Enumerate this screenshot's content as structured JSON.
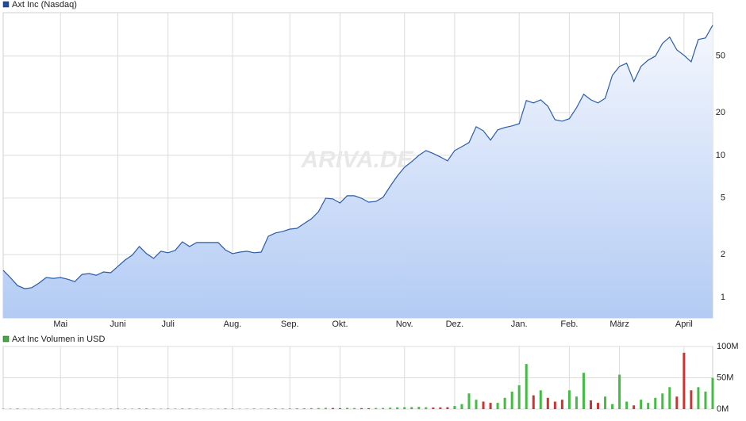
{
  "chart_data": [
    {
      "type": "area",
      "title": "Axt Inc (Nasdaq)",
      "watermark": "ARIVA.DE",
      "color": "#2a5ca8",
      "legend_color": "#1f4e9c",
      "log_scale": true,
      "grid": true,
      "values": [
        1.55,
        1.38,
        1.21,
        1.15,
        1.17,
        1.26,
        1.38,
        1.36,
        1.38,
        1.34,
        1.29,
        1.45,
        1.47,
        1.43,
        1.51,
        1.49,
        1.65,
        1.83,
        1.98,
        2.28,
        2.03,
        1.88,
        2.11,
        2.06,
        2.14,
        2.46,
        2.28,
        2.43,
        2.43,
        2.43,
        2.43,
        2.16,
        2.03,
        2.08,
        2.11,
        2.06,
        2.08,
        2.69,
        2.84,
        2.91,
        3.02,
        3.06,
        3.31,
        3.57,
        4.01,
        4.99,
        4.93,
        4.62,
        5.19,
        5.19,
        4.99,
        4.68,
        4.74,
        5.06,
        6.05,
        7.16,
        8.24,
        9.02,
        10.0,
        10.8,
        10.3,
        9.75,
        9.14,
        10.8,
        11.5,
        12.3,
        15.9,
        14.9,
        12.8,
        15.1,
        15.7,
        16.1,
        16.7,
        24.3,
        23.4,
        24.6,
        22.2,
        17.8,
        17.4,
        18.1,
        21.6,
        26.9,
        24.6,
        23.4,
        25.2,
        36.6,
        42.3,
        44.5,
        33.1,
        42.3,
        46.8,
        49.9,
        61.4,
        68.0,
        55.3,
        50.6,
        45.6,
        65.4,
        67.1,
        82.4
      ],
      "xlim": [
        0,
        99
      ],
      "xticks": [
        {
          "value": 8,
          "label": "Mai"
        },
        {
          "value": 16,
          "label": "Juni"
        },
        {
          "value": 23,
          "label": "Juli"
        },
        {
          "value": 32,
          "label": "Aug."
        },
        {
          "value": 40,
          "label": "Sep."
        },
        {
          "value": 47,
          "label": "Okt."
        },
        {
          "value": 56,
          "label": "Nov."
        },
        {
          "value": 63,
          "label": "Dez."
        },
        {
          "value": 72,
          "label": "Jan."
        },
        {
          "value": 79,
          "label": "Feb."
        },
        {
          "value": 86,
          "label": "März"
        },
        {
          "value": 95,
          "label": "April"
        }
      ],
      "ylim": [
        0.716,
        101
      ],
      "yticks": [
        1,
        2,
        5,
        10,
        20,
        50
      ]
    },
    {
      "type": "bar",
      "title": "Axt Inc Volumen in USD",
      "legend_color": "#44aa44",
      "up_color": "#44bb44",
      "down_color": "#cc3333",
      "grid": true,
      "values": [
        0.6,
        0.5,
        0.7,
        0.5,
        0.6,
        0.8,
        0.6,
        0.5,
        0.7,
        0.6,
        0.5,
        0.8,
        0.6,
        0.5,
        0.7,
        0.6,
        0.9,
        0.8,
        0.7,
        1.0,
        0.8,
        0.6,
        0.7,
        0.6,
        0.8,
        1.0,
        0.7,
        0.8,
        0.6,
        0.6,
        0.7,
        0.8,
        0.6,
        0.7,
        0.6,
        0.7,
        0.6,
        1.0,
        1.1,
        0.9,
        1.0,
        1.2,
        1.3,
        1.5,
        1.6,
        2.0,
        1.8,
        1.5,
        1.9,
        1.6,
        1.5,
        1.4,
        1.7,
        1.8,
        2.2,
        2.8,
        3.0,
        3.2,
        3.5,
        3.0,
        2.5,
        2.8,
        3.0,
        5,
        8,
        25,
        15,
        12,
        10,
        10,
        18,
        28,
        38,
        72,
        22,
        30,
        18,
        12,
        15,
        30,
        20,
        58,
        14,
        10,
        20,
        8,
        55,
        12,
        6,
        15,
        10,
        18,
        25,
        35,
        20,
        90,
        30,
        35,
        28,
        50
      ],
      "ylim": [
        0,
        100
      ],
      "yticks": [
        {
          "value": 0,
          "label": "0M"
        },
        {
          "value": 50,
          "label": "50M"
        },
        {
          "value": 100,
          "label": "100M"
        }
      ]
    }
  ]
}
